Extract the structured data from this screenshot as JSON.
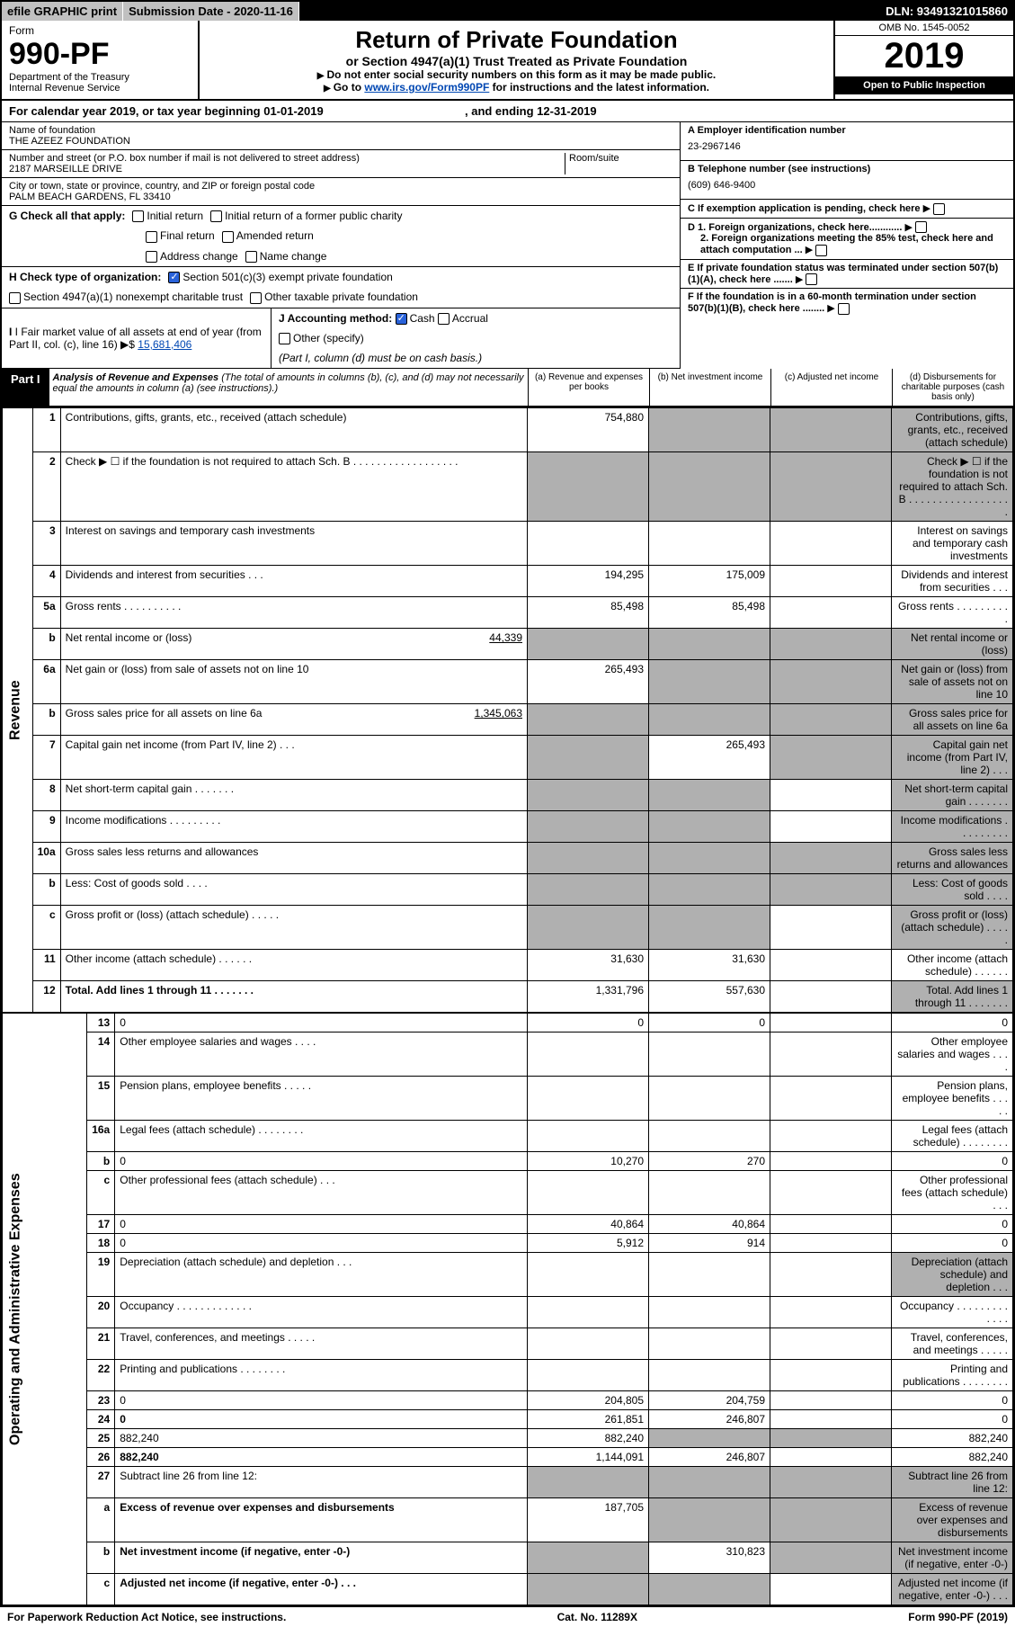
{
  "topbar": {
    "efile": "efile GRAPHIC print",
    "subdate_label": "Submission Date - 2020-11-16",
    "dln": "DLN: 93491321015860"
  },
  "header": {
    "form_word": "Form",
    "form_no": "990-PF",
    "dept": "Department of the Treasury",
    "irs": "Internal Revenue Service",
    "title": "Return of Private Foundation",
    "subtitle": "or Section 4947(a)(1) Trust Treated as Private Foundation",
    "bullet1": "Do not enter social security numbers on this form as it may be made public.",
    "bullet2_pre": "Go to ",
    "bullet2_link": "www.irs.gov/Form990PF",
    "bullet2_post": " for instructions and the latest information.",
    "omb": "OMB No. 1545-0052",
    "year": "2019",
    "open": "Open to Public Inspection"
  },
  "calendar": {
    "text_pre": "For calendar year 2019, or tax year beginning 01-01-2019",
    "text_mid": ", and ending 12-31-2019"
  },
  "foundation": {
    "name_label": "Name of foundation",
    "name": "THE AZEEZ FOUNDATION",
    "addr_label": "Number and street (or P.O. box number if mail is not delivered to street address)",
    "room_label": "Room/suite",
    "addr": "2187 MARSEILLE DRIVE",
    "city_label": "City or town, state or province, country, and ZIP or foreign postal code",
    "city": "PALM BEACH GARDENS, FL  33410"
  },
  "right_info": {
    "a_label": "A Employer identification number",
    "a_val": "23-2967146",
    "b_label": "B Telephone number (see instructions)",
    "b_val": "(609) 646-9400",
    "c_label": "C If exemption application is pending, check here",
    "d1": "D 1. Foreign organizations, check here............",
    "d2": "2. Foreign organizations meeting the 85% test, check here and attach computation ...",
    "e": "E  If private foundation status was terminated under section 507(b)(1)(A), check here .......",
    "f": "F  If the foundation is in a 60-month termination under section 507(b)(1)(B), check here ........"
  },
  "g": {
    "label": "G Check all that apply:",
    "opts": [
      "Initial return",
      "Final return",
      "Address change",
      "Initial return of a former public charity",
      "Amended return",
      "Name change"
    ]
  },
  "h": {
    "label": "H Check type of organization:",
    "opt1": "Section 501(c)(3) exempt private foundation",
    "opt2": "Section 4947(a)(1) nonexempt charitable trust",
    "opt3": "Other taxable private foundation"
  },
  "i": {
    "label": "I Fair market value of all assets at end of year (from Part II, col. (c), line 16)",
    "val": "15,681,406"
  },
  "j": {
    "label": "J Accounting method:",
    "cash": "Cash",
    "accrual": "Accrual",
    "other": "Other (specify)",
    "note": "(Part I, column (d) must be on cash basis.)"
  },
  "part1": {
    "badge": "Part I",
    "title": "Analysis of Revenue and Expenses",
    "note": "(The total of amounts in columns (b), (c), and (d) may not necessarily equal the amounts in column (a) (see instructions).)",
    "cols": {
      "a": "(a) Revenue and expenses per books",
      "b": "(b) Net investment income",
      "c": "(c) Adjusted net income",
      "d": "(d) Disbursements for charitable purposes (cash basis only)"
    }
  },
  "sections": {
    "revenue": "Revenue",
    "expenses": "Operating and Administrative Expenses"
  },
  "lines": [
    {
      "n": "1",
      "d": "Contributions, gifts, grants, etc., received (attach schedule)",
      "a": "754,880",
      "bs": true,
      "cs": true,
      "ds": true
    },
    {
      "n": "2",
      "d": "Check ▶ ☐ if the foundation is not required to attach Sch. B . . . . . . . . . . . . . . . . . .",
      "as": true,
      "bs": true,
      "cs": true,
      "ds": true
    },
    {
      "n": "3",
      "d": "Interest on savings and temporary cash investments"
    },
    {
      "n": "4",
      "d": "Dividends and interest from securities   .  .  .",
      "a": "194,295",
      "b": "175,009"
    },
    {
      "n": "5a",
      "d": "Gross rents     .  .  .  .  .  .  .  .  .  .",
      "a": "85,498",
      "b": "85,498"
    },
    {
      "n": "b",
      "d": "Net rental income or (loss)",
      "inline": "44,339",
      "as": true,
      "bs": true,
      "cs": true,
      "ds": true
    },
    {
      "n": "6a",
      "d": "Net gain or (loss) from sale of assets not on line 10",
      "a": "265,493",
      "bs": true,
      "cs": true,
      "ds": true
    },
    {
      "n": "b",
      "d": "Gross sales price for all assets on line 6a",
      "inline": "1,345,063",
      "as": true,
      "bs": true,
      "cs": true,
      "ds": true
    },
    {
      "n": "7",
      "d": "Capital gain net income (from Part IV, line 2)   .  .  .",
      "as": true,
      "b": "265,493",
      "cs": true,
      "ds": true
    },
    {
      "n": "8",
      "d": "Net short-term capital gain   .  .  .  .  .  .  .",
      "as": true,
      "bs": true,
      "ds": true
    },
    {
      "n": "9",
      "d": "Income modifications  .  .  .  .  .  .  .  .  .",
      "as": true,
      "bs": true,
      "ds": true
    },
    {
      "n": "10a",
      "d": "Gross sales less returns and allowances",
      "as": true,
      "bs": true,
      "cs": true,
      "ds": true
    },
    {
      "n": "b",
      "d": "Less: Cost of goods sold    .  .  .  .",
      "as": true,
      "bs": true,
      "cs": true,
      "ds": true
    },
    {
      "n": "c",
      "d": "Gross profit or (loss) (attach schedule)   .  .  .  .  .",
      "as": true,
      "bs": true,
      "ds": true
    },
    {
      "n": "11",
      "d": "Other income (attach schedule)   .  .  .  .  .  .",
      "a": "31,630",
      "b": "31,630"
    },
    {
      "n": "12",
      "d": "Total. Add lines 1 through 11   .  .  .  .  .  .  .",
      "bold": true,
      "a": "1,331,796",
      "b": "557,630",
      "ds": true
    }
  ],
  "exp_lines": [
    {
      "n": "13",
      "d": "0",
      "a": "0",
      "b": "0"
    },
    {
      "n": "14",
      "d": "Other employee salaries and wages   .  .  .  ."
    },
    {
      "n": "15",
      "d": "Pension plans, employee benefits   .  .  .  .  ."
    },
    {
      "n": "16a",
      "d": "Legal fees (attach schedule)  .  .  .  .  .  .  .  ."
    },
    {
      "n": "b",
      "d": "0",
      "a": "10,270",
      "b": "270"
    },
    {
      "n": "c",
      "d": "Other professional fees (attach schedule)    .  .  ."
    },
    {
      "n": "17",
      "d": "0",
      "a": "40,864",
      "b": "40,864"
    },
    {
      "n": "18",
      "d": "0",
      "a": "5,912",
      "b": "914"
    },
    {
      "n": "19",
      "d": "Depreciation (attach schedule) and depletion    .  .  .",
      "ds": true
    },
    {
      "n": "20",
      "d": "Occupancy  .  .  .  .  .  .  .  .  .  .  .  .  ."
    },
    {
      "n": "21",
      "d": "Travel, conferences, and meetings   .  .  .  .  ."
    },
    {
      "n": "22",
      "d": "Printing and publications  .  .  .  .  .  .  .  ."
    },
    {
      "n": "23",
      "d": "0",
      "a": "204,805",
      "b": "204,759"
    },
    {
      "n": "24",
      "d": "0",
      "bold": true,
      "a": "261,851",
      "b": "246,807"
    },
    {
      "n": "25",
      "d": "882,240",
      "a": "882,240",
      "bs": true,
      "cs": true
    },
    {
      "n": "26",
      "d": "882,240",
      "bold": true,
      "a": "1,144,091",
      "b": "246,807"
    }
  ],
  "line27": [
    {
      "n": "27",
      "d": "Subtract line 26 from line 12:",
      "as": true,
      "bs": true,
      "cs": true,
      "ds": true
    },
    {
      "n": "a",
      "d": "Excess of revenue over expenses and disbursements",
      "bold": true,
      "a": "187,705",
      "bs": true,
      "cs": true,
      "ds": true
    },
    {
      "n": "b",
      "d": "Net investment income (if negative, enter -0-)",
      "bold": true,
      "as": true,
      "b": "310,823",
      "cs": true,
      "ds": true
    },
    {
      "n": "c",
      "d": "Adjusted net income (if negative, enter -0-)   .  .  .",
      "bold": true,
      "as": true,
      "bs": true,
      "ds": true
    }
  ],
  "footer": {
    "left": "For Paperwork Reduction Act Notice, see instructions.",
    "mid": "Cat. No. 11289X",
    "right": "Form 990-PF (2019)"
  }
}
